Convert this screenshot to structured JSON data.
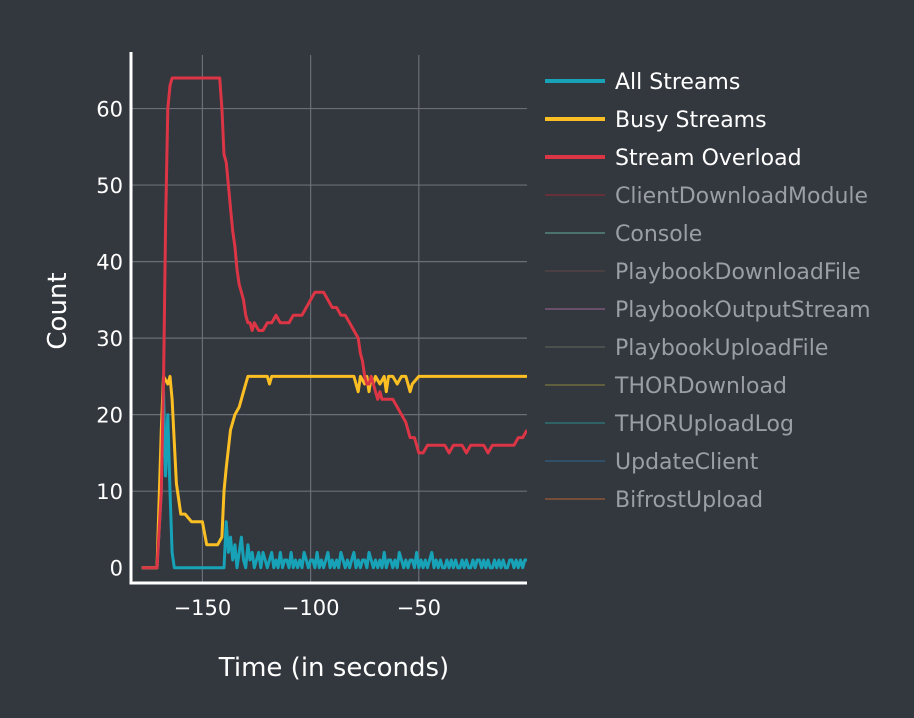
{
  "chart_data": {
    "type": "line",
    "title": "",
    "xlabel": "Time (in seconds)",
    "ylabel": "Count",
    "xlim": [
      -183,
      0
    ],
    "ylim": [
      -2,
      67
    ],
    "x_ticks": [
      -150,
      -100,
      -50
    ],
    "x_tick_labels": [
      "−150",
      "−100",
      "−50"
    ],
    "y_ticks": [
      0,
      10,
      20,
      30,
      40,
      50,
      60
    ],
    "y_tick_labels": [
      "0",
      "10",
      "20",
      "30",
      "40",
      "50",
      "60"
    ],
    "grid": true,
    "legend_position": "right",
    "background": "#33373e",
    "grid_color": "#6a6e76",
    "series": [
      {
        "name": "All Streams",
        "color": "#17a2b8",
        "visible": true,
        "x": [
          -178,
          -171,
          -169,
          -168,
          -167,
          -166,
          -165,
          -164,
          -163,
          -162,
          -160,
          -158,
          -150,
          -142,
          -140,
          -139,
          -138,
          -137,
          -136,
          -135,
          -134,
          -133,
          -132,
          -131,
          -130,
          -129,
          -128,
          -127,
          -126,
          -125,
          -124,
          -123,
          -122,
          -121,
          -120,
          -119,
          -118,
          -117,
          -116,
          -115,
          -114,
          -113,
          -112,
          -111,
          -110,
          -109,
          -108,
          -107,
          -106,
          -105,
          -104,
          -103,
          -102,
          -101,
          -100,
          -99,
          -98,
          -97,
          -96,
          -95,
          -94,
          -93,
          -92,
          -91,
          -90,
          -89,
          -88,
          -87,
          -86,
          -85,
          -84,
          -83,
          -82,
          -81,
          -80,
          -79,
          -78,
          -77,
          -76,
          -75,
          -74,
          -73,
          -72,
          -71,
          -70,
          -69,
          -68,
          -67,
          -66,
          -65,
          -64,
          -63,
          -62,
          -61,
          -60,
          -59,
          -58,
          -57,
          -56,
          -55,
          -54,
          -53,
          -52,
          -51,
          -50,
          -49,
          -48,
          -47,
          -46,
          -45,
          -44,
          -43,
          -42,
          -41,
          -40,
          -39,
          -38,
          -37,
          -36,
          -35,
          -34,
          -33,
          -32,
          -31,
          -30,
          -29,
          -28,
          -27,
          -26,
          -25,
          -24,
          -23,
          -22,
          -21,
          -20,
          -19,
          -18,
          -17,
          -16,
          -15,
          -14,
          -13,
          -12,
          -11,
          -10,
          -9,
          -8,
          -7,
          -6,
          -5,
          -4,
          -3,
          -2,
          -1,
          0
        ],
        "y": [
          0,
          0,
          10,
          23,
          12,
          20,
          10,
          2,
          0,
          0,
          0,
          0,
          0,
          0,
          0,
          6,
          2,
          4,
          1,
          3,
          0,
          2,
          4,
          1,
          0,
          3,
          1,
          2,
          0,
          1,
          2,
          0,
          2,
          1,
          0,
          1,
          2,
          0,
          1,
          0,
          2,
          0,
          1,
          1,
          0,
          2,
          0,
          1,
          0,
          1,
          0,
          2,
          1,
          0,
          1,
          1,
          0,
          2,
          0,
          1,
          0,
          1,
          2,
          0,
          1,
          0,
          1,
          0,
          2,
          1,
          0,
          1,
          0,
          1,
          2,
          0,
          1,
          0,
          1,
          1,
          0,
          2,
          1,
          0,
          1,
          0,
          1,
          0,
          2,
          0,
          1,
          1,
          0,
          1,
          0,
          2,
          1,
          0,
          1,
          0,
          1,
          1,
          0,
          2,
          0,
          1,
          0,
          1,
          0,
          1,
          2,
          0,
          1,
          0,
          1,
          0,
          0,
          1,
          0,
          1,
          0,
          1,
          0,
          0,
          1,
          0,
          1,
          0,
          0,
          1,
          0,
          1,
          1,
          0,
          1,
          0,
          1,
          0,
          0,
          1,
          0,
          1,
          0,
          1,
          0,
          0,
          1,
          1,
          0,
          1,
          0,
          1,
          0,
          1,
          1
        ]
      },
      {
        "name": "Busy Streams",
        "color": "#fbbf24",
        "visible": true,
        "x": [
          -178,
          -171,
          -169,
          -168,
          -166,
          -165,
          -164,
          -162,
          -160,
          -158,
          -155,
          -153,
          -150,
          -148,
          -143,
          -141,
          -140,
          -139,
          -137,
          -135,
          -133,
          -131,
          -130,
          -129,
          -128,
          -126,
          -120,
          -119,
          -118,
          -115,
          -110,
          -100,
          -90,
          -80,
          -78,
          -77,
          -75,
          -74,
          -73,
          -72,
          -71,
          -70,
          -68,
          -66,
          -65,
          -64,
          -62,
          -60,
          -58,
          -56,
          -55,
          -54,
          -53,
          -50,
          -49,
          -48,
          -45,
          -40,
          -30,
          -20,
          -10,
          0
        ],
        "y": [
          0,
          0,
          18,
          25,
          24,
          25,
          22,
          11,
          7,
          7,
          6,
          6,
          6,
          3,
          3,
          4,
          10,
          13,
          18,
          20,
          21,
          23,
          24,
          25,
          25,
          25,
          25,
          24,
          25,
          25,
          25,
          25,
          25,
          25,
          23,
          25,
          24,
          25,
          23,
          25,
          24,
          25,
          24,
          25,
          23,
          25,
          25,
          24,
          25,
          25,
          24,
          23,
          24,
          25,
          25,
          25,
          25,
          25,
          25,
          25,
          25,
          25
        ],
        "style": "solid"
      },
      {
        "name": "Stream Overload",
        "color": "#dc3545",
        "visible": true,
        "x": [
          -178,
          -171,
          -169,
          -168,
          -167,
          -166,
          -165,
          -164,
          -160,
          -150,
          -142,
          -141,
          -140,
          -139,
          -138,
          -137,
          -136,
          -135,
          -134,
          -133,
          -132,
          -131,
          -130,
          -129,
          -128,
          -127,
          -126,
          -124,
          -122,
          -120,
          -118,
          -116,
          -114,
          -112,
          -110,
          -108,
          -106,
          -104,
          -102,
          -100,
          -98,
          -96,
          -94,
          -92,
          -90,
          -88,
          -86,
          -84,
          -82,
          -80,
          -78,
          -77,
          -76,
          -75,
          -74,
          -73,
          -72,
          -71,
          -70,
          -69,
          -68,
          -67,
          -66,
          -65,
          -64,
          -62,
          -60,
          -58,
          -56,
          -54,
          -52,
          -50,
          -48,
          -46,
          -44,
          -42,
          -40,
          -38,
          -36,
          -34,
          -32,
          -30,
          -28,
          -26,
          -24,
          -22,
          -20,
          -18,
          -16,
          -14,
          -12,
          -10,
          -8,
          -6,
          -4,
          -2,
          0
        ],
        "y": [
          0,
          0,
          10,
          24,
          45,
          60,
          63,
          64,
          64,
          64,
          64,
          60,
          54,
          53,
          50,
          47,
          44,
          42,
          39,
          37,
          36,
          35,
          33,
          32,
          32,
          31,
          32,
          31,
          31,
          32,
          32,
          33,
          32,
          32,
          32,
          33,
          33,
          33,
          34,
          35,
          36,
          36,
          36,
          35,
          34,
          34,
          33,
          33,
          32,
          31,
          30,
          28,
          27,
          25,
          24,
          24,
          25,
          24,
          23,
          22,
          23,
          22,
          22,
          22,
          22,
          22,
          21,
          20,
          19,
          17,
          17,
          15,
          15,
          16,
          16,
          16,
          16,
          16,
          15,
          16,
          16,
          16,
          15,
          16,
          16,
          16,
          16,
          15,
          16,
          16,
          16,
          16,
          16,
          16,
          17,
          17,
          18
        ],
        "style": "solid"
      },
      {
        "name": "ClientDownloadModule",
        "color": "#8b2c36",
        "visible": false,
        "x": [],
        "y": []
      },
      {
        "name": "Console",
        "color": "#5e9a8c",
        "visible": false,
        "x": [],
        "y": []
      },
      {
        "name": "PlaybookDownloadFile",
        "color": "#5b4548",
        "visible": false,
        "x": [],
        "y": []
      },
      {
        "name": "PlaybookOutputStream",
        "color": "#8e5f86",
        "visible": false,
        "x": [],
        "y": []
      },
      {
        "name": "PlaybookUploadFile",
        "color": "#596359",
        "visible": false,
        "x": [],
        "y": []
      },
      {
        "name": "THORDownload",
        "color": "#7f7a3a",
        "visible": false,
        "x": [],
        "y": []
      },
      {
        "name": "THORUploadLog",
        "color": "#2b7f80",
        "visible": false,
        "x": [],
        "y": []
      },
      {
        "name": "UpdateClient",
        "color": "#2f5f84",
        "visible": false,
        "x": [],
        "y": []
      },
      {
        "name": "BifrostUpload",
        "color": "#a35d32",
        "visible": false,
        "x": [],
        "y": []
      }
    ]
  }
}
